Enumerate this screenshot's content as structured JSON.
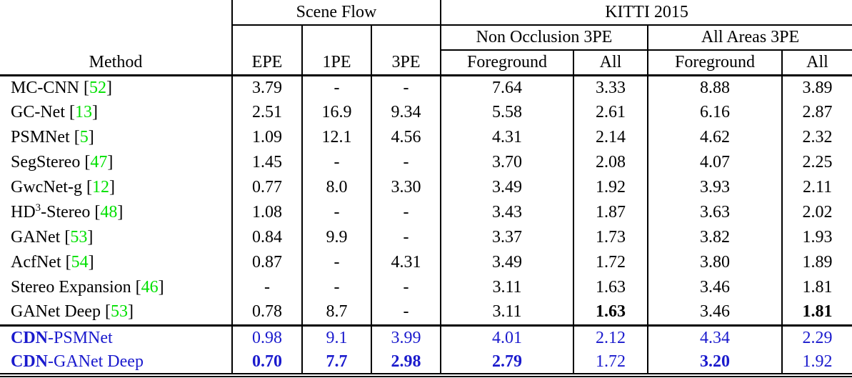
{
  "table": {
    "colors": {
      "citation_green": "#00e000",
      "highlight_blue": "#1a1acd"
    },
    "header": {
      "method": "Method",
      "groups": {
        "scene_flow": "Scene Flow",
        "kitti": "KITTI 2015"
      },
      "scene_flow_cols": [
        "EPE",
        "1PE",
        "3PE"
      ],
      "kitti_groups": [
        "Non Occlusion 3PE",
        "All Areas 3PE"
      ],
      "kitti_cols": [
        "Foreground",
        "All",
        "Foreground",
        "All"
      ]
    },
    "rows": [
      {
        "method": {
          "text": "MC-CNN",
          "cite": "52"
        },
        "values": [
          "3.79",
          "-",
          "-",
          "7.64",
          "3.33",
          "8.88",
          "3.89"
        ]
      },
      {
        "method": {
          "text": "GC-Net",
          "cite": "13"
        },
        "values": [
          "2.51",
          "16.9",
          "9.34",
          "5.58",
          "2.61",
          "6.16",
          "2.87"
        ]
      },
      {
        "method": {
          "text": "PSMNet",
          "cite": "5"
        },
        "values": [
          "1.09",
          "12.1",
          "4.56",
          "4.31",
          "2.14",
          "4.62",
          "2.32"
        ]
      },
      {
        "method": {
          "text": "SegStereo",
          "cite": "47"
        },
        "values": [
          "1.45",
          "-",
          "-",
          "3.70",
          "2.08",
          "4.07",
          "2.25"
        ]
      },
      {
        "method": {
          "text": "GwcNet-g",
          "cite": "12"
        },
        "values": [
          "0.77",
          "8.0",
          "3.30",
          "3.49",
          "1.92",
          "3.93",
          "2.11"
        ]
      },
      {
        "method": {
          "text": "HD",
          "sup": "3",
          "after": "-Stereo",
          "cite": "48"
        },
        "values": [
          "1.08",
          "-",
          "-",
          "3.43",
          "1.87",
          "3.63",
          "2.02"
        ]
      },
      {
        "method": {
          "text": "GANet",
          "cite": "53"
        },
        "values": [
          "0.84",
          "9.9",
          "-",
          "3.37",
          "1.73",
          "3.82",
          "1.93"
        ]
      },
      {
        "method": {
          "text": "AcfNet",
          "cite": "54"
        },
        "values": [
          "0.87",
          "-",
          "4.31",
          "3.49",
          "1.72",
          "3.80",
          "1.89"
        ]
      },
      {
        "method": {
          "text": "Stereo Expansion",
          "cite": "46"
        },
        "values": [
          "-",
          "-",
          "-",
          "3.11",
          "1.63",
          "3.46",
          "1.81"
        ]
      },
      {
        "method": {
          "text": "GANet Deep",
          "cite": "53"
        },
        "values": [
          "0.78",
          "8.7",
          "-",
          "3.11",
          "1.63",
          "3.46",
          "1.81"
        ],
        "bold": [
          4,
          6
        ]
      },
      {
        "method": {
          "bold_prefix": "CDN",
          "text": "-PSMNet"
        },
        "values": [
          "0.98",
          "9.1",
          "3.99",
          "4.01",
          "2.12",
          "4.34",
          "2.29"
        ],
        "highlight": true
      },
      {
        "method": {
          "bold_prefix": "CDN",
          "text": "-GANet Deep"
        },
        "values": [
          "0.70",
          "7.7",
          "2.98",
          "2.79",
          "1.72",
          "3.20",
          "1.92"
        ],
        "highlight": true,
        "bold": [
          0,
          1,
          2,
          3,
          5
        ]
      }
    ]
  }
}
